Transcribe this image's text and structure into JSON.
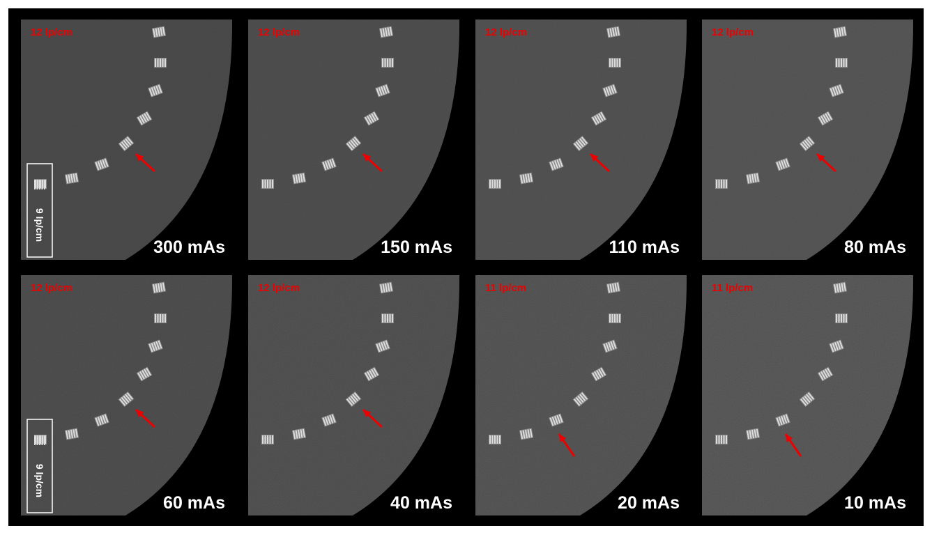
{
  "panels": [
    {
      "resolution": "12 lp/cm",
      "dose": "300 mAs",
      "scale_label": "9 lp/cm"
    },
    {
      "resolution": "12 lp/cm",
      "dose": "150 mAs"
    },
    {
      "resolution": "12 lp/cm",
      "dose": "110 mAs"
    },
    {
      "resolution": "12 lp/cm",
      "dose": "80 mAs"
    },
    {
      "resolution": "12 lp/cm",
      "dose": "60 mAs",
      "scale_label": "9 lp/cm"
    },
    {
      "resolution": "12 lp/cm",
      "dose": "40 mAs"
    },
    {
      "resolution": "11 lp/cm",
      "dose": "20 mAs"
    },
    {
      "resolution": "11 lp/cm",
      "dose": "10 mAs"
    }
  ]
}
